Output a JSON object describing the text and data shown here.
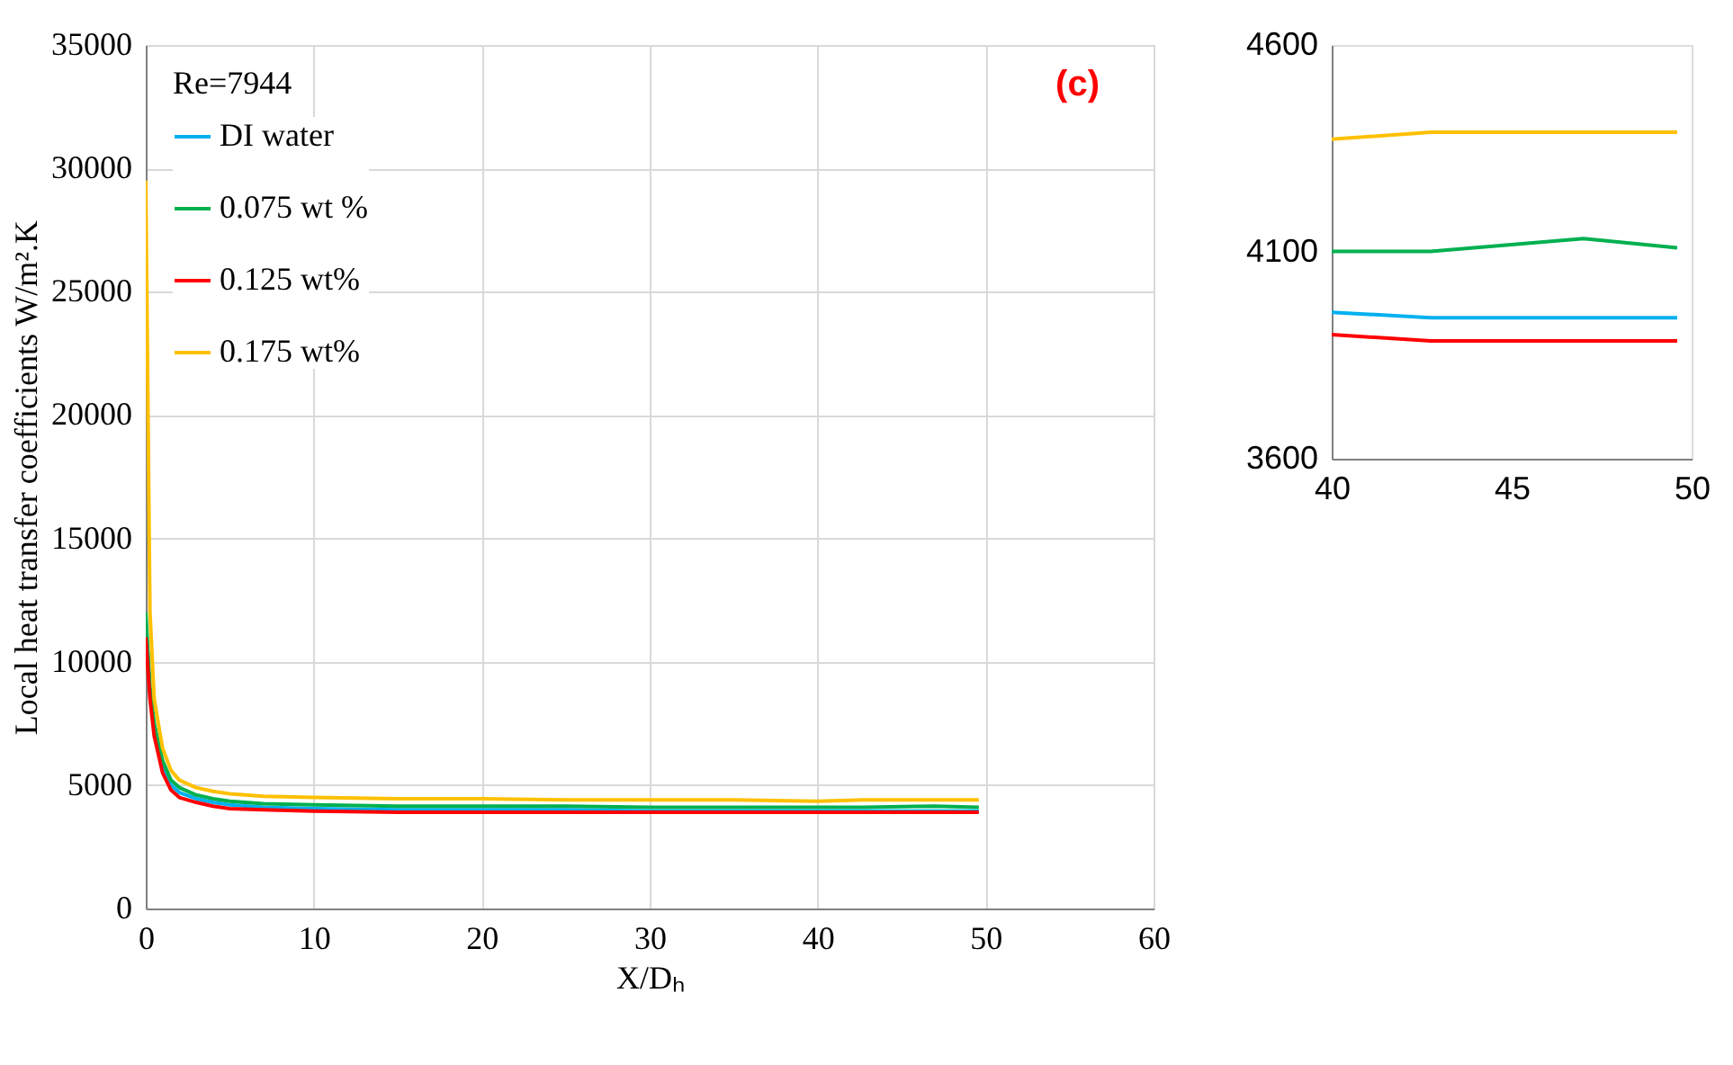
{
  "chart_data": [
    {
      "type": "line",
      "xlabel": "X/Dₕ",
      "ylabel": "Local heat transfer coefficients W/m².K",
      "annotations": [
        "Re=7944",
        "(c)"
      ],
      "x": [
        0,
        0.25,
        0.5,
        1,
        1.5,
        2,
        3,
        4,
        5,
        7,
        10,
        15,
        20,
        25,
        30,
        35,
        40,
        42.75,
        47,
        49.6
      ],
      "series": [
        {
          "name": "DI water",
          "color": "#00b0f0",
          "values": [
            null,
            null,
            7300,
            5800,
            5000,
            4700,
            4450,
            4300,
            4200,
            4100,
            4050,
            4000,
            4000,
            4000,
            3950,
            3950,
            3950,
            3950,
            3950,
            3950
          ]
        },
        {
          "name": "0.075 wt %",
          "color": "#00b050",
          "values": [
            12000,
            9000,
            7500,
            6000,
            5200,
            4900,
            4600,
            4450,
            4350,
            4250,
            4200,
            4150,
            4150,
            4150,
            4100,
            4100,
            4100,
            4100,
            4150,
            4100
          ]
        },
        {
          "name": "0.125 wt%",
          "color": "#ff0000",
          "values": [
            11000,
            8500,
            7000,
            5500,
            4800,
            4500,
            4300,
            4150,
            4050,
            4000,
            3950,
            3900,
            3900,
            3900,
            3900,
            3900,
            3900,
            3900,
            3900,
            3900
          ]
        },
        {
          "name": "0.175 wt%",
          "color": "#ffc000",
          "values": [
            29500,
            12000,
            8500,
            6500,
            5600,
            5200,
            4900,
            4750,
            4650,
            4550,
            4500,
            4450,
            4450,
            4400,
            4400,
            4400,
            4350,
            4400,
            4400,
            4400
          ]
        }
      ],
      "xlim": [
        0,
        60
      ],
      "xticks": [
        0,
        10,
        20,
        30,
        40,
        50,
        60
      ],
      "ylim": [
        0,
        35000
      ],
      "yticks": [
        0,
        5000,
        10000,
        15000,
        20000,
        25000,
        30000,
        35000
      ],
      "grid": true,
      "legend": "top left"
    },
    {
      "type": "line",
      "x": [
        40,
        42.75,
        47,
        49.6
      ],
      "series": [
        {
          "color": "#00b0f0",
          "values": [
            3954,
            3941,
            3941,
            3941
          ]
        },
        {
          "color": "#00b050",
          "values": [
            4101,
            4101,
            4132,
            4110
          ]
        },
        {
          "color": "#ff0000",
          "values": [
            3900,
            3885,
            3885,
            3885
          ]
        },
        {
          "color": "#ffc000",
          "values": [
            4372,
            4389,
            4389,
            4389
          ]
        }
      ],
      "xlim": [
        40,
        50
      ],
      "xticks": [
        40,
        45,
        50
      ],
      "ylim": [
        3600,
        4600
      ],
      "yticks": [
        3600,
        4100,
        4600
      ]
    }
  ]
}
